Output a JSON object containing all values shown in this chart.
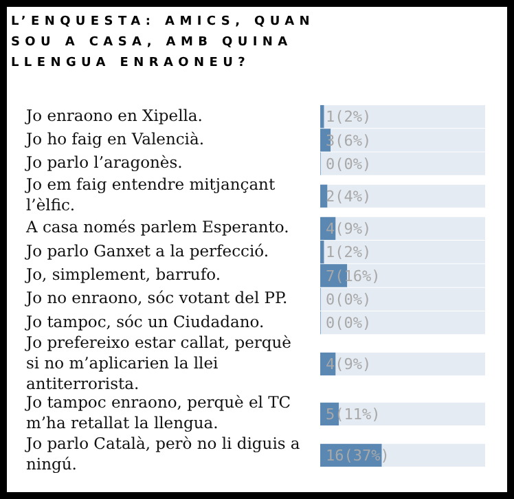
{
  "chart_data": {
    "type": "bar",
    "orientation": "horizontal",
    "stacked": true,
    "title": "L’ENQUESTA: AMICS, QUAN SOU A CASA, AMB QUINA LLENGUA ENRAONEU?",
    "categories": [
      "Jo enraono en Xipella.",
      "Jo ho faig en Valencià.",
      "Jo parlo l’aragonès.",
      "Jo em faig entendre mitjançant l’èlfic.",
      "A casa només parlem Esperanto.",
      "Jo parlo Ganxet a la perfecció.",
      "Jo, simplement, barrufo.",
      "Jo no enraono, sóc votant del PP.",
      "Jo tampoc, sóc un Ciudadano.",
      "Jo prefereixo estar callat, perquè si no m’aplicarien la llei antiterrorista.",
      "Jo tampoc enraono, perquè el TC m’ha retallat la llengua.",
      "Jo parlo Català, però no li diguis a ningú."
    ],
    "series": [
      {
        "color": "#5a88b3",
        "values": [
          2,
          6,
          0,
          4,
          9,
          2,
          16,
          0,
          0,
          9,
          11,
          37
        ],
        "value_labels": [
          "1(2%)",
          "3(6%)",
          "0(0%)",
          "2(4%)",
          "4(9%)",
          "1(2%)",
          "7(16%)",
          "0(0%)",
          "0(0%)",
          "4(9%)",
          "5(11%)",
          "16(37%)"
        ]
      },
      {
        "color": "#e4ebf3",
        "values": [
          98,
          94,
          100,
          96,
          91,
          98,
          84,
          100,
          100,
          91,
          89,
          63
        ]
      }
    ],
    "xlim": [
      0,
      100
    ],
    "tick_labels": false
  }
}
